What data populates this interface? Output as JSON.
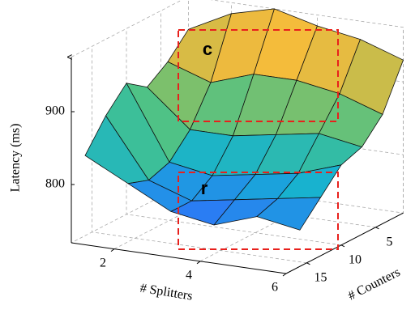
{
  "chart_data": {
    "type": "surface",
    "zlabel": "Latency (ms)",
    "xlabel": "# Splitters",
    "ylabel": "# Counters",
    "x": [
      1,
      2,
      3,
      4,
      5,
      6
    ],
    "y": [
      1,
      4,
      7,
      10,
      13,
      16
    ],
    "z": [
      [
        930,
        960,
        975,
        960,
        950,
        930
      ],
      [
        900,
        880,
        900,
        900,
        890,
        870
      ],
      [
        880,
        830,
        830,
        840,
        850,
        840
      ],
      [
        900,
        800,
        790,
        800,
        810,
        830
      ],
      [
        870,
        790,
        770,
        780,
        790,
        800
      ],
      [
        830,
        800,
        770,
        760,
        780,
        770
      ]
    ],
    "xlim": [
      1,
      6
    ],
    "ylim": [
      1,
      18
    ],
    "zlim": [
      720,
      975
    ],
    "xticks": [
      2,
      4,
      6
    ],
    "yticks": [
      5,
      10,
      15
    ],
    "zticks": [
      800,
      900
    ],
    "colormap": [
      "#3e26a8",
      "#2f72fa",
      "#15b1d3",
      "#44c28c",
      "#a4be56",
      "#f4ba3c",
      "#f9fb15"
    ],
    "grid": true,
    "annotations": [
      "c",
      "r"
    ]
  }
}
